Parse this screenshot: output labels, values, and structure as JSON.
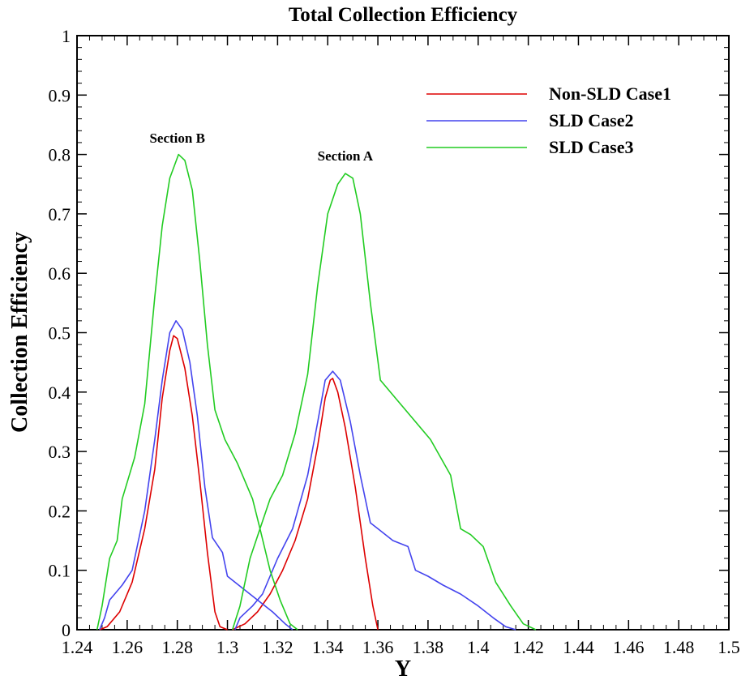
{
  "chart_data": {
    "type": "line",
    "title": "Total Collection Efficiency",
    "xlabel": "Y",
    "ylabel": "Collection Efficiency",
    "xlim": [
      1.24,
      1.5
    ],
    "ylim": [
      0,
      1
    ],
    "xticks": [
      "1.24",
      "1.26",
      "1.28",
      "1.3",
      "1.32",
      "1.34",
      "1.36",
      "1.38",
      "1.4",
      "1.42",
      "1.44",
      "1.46",
      "1.48",
      "1.5"
    ],
    "yticks": [
      "0",
      "0.1",
      "0.2",
      "0.3",
      "0.4",
      "0.5",
      "0.6",
      "0.7",
      "0.8",
      "0.9",
      "1"
    ],
    "legend_position": "top-right",
    "annotations": [
      {
        "text": "Section B",
        "x": 1.28,
        "y": 0.82
      },
      {
        "text": "Section A",
        "x": 1.347,
        "y": 0.79
      }
    ],
    "series": [
      {
        "name": "Non-SLD Case1",
        "color": "#dd0000",
        "segments": [
          [
            [
              1.249,
              0
            ],
            [
              1.252,
              0.005
            ],
            [
              1.257,
              0.03
            ],
            [
              1.262,
              0.08
            ],
            [
              1.267,
              0.17
            ],
            [
              1.271,
              0.27
            ],
            [
              1.274,
              0.39
            ],
            [
              1.277,
              0.47
            ],
            [
              1.2785,
              0.495
            ],
            [
              1.28,
              0.49
            ],
            [
              1.283,
              0.44
            ],
            [
              1.286,
              0.36
            ],
            [
              1.289,
              0.25
            ],
            [
              1.292,
              0.13
            ],
            [
              1.295,
              0.03
            ],
            [
              1.297,
              0.005
            ],
            [
              1.3,
              0
            ]
          ],
          [
            [
              1.302,
              0
            ],
            [
              1.307,
              0.01
            ],
            [
              1.312,
              0.03
            ],
            [
              1.317,
              0.06
            ],
            [
              1.322,
              0.1
            ],
            [
              1.327,
              0.15
            ],
            [
              1.332,
              0.22
            ],
            [
              1.336,
              0.31
            ],
            [
              1.339,
              0.39
            ],
            [
              1.341,
              0.42
            ],
            [
              1.342,
              0.423
            ],
            [
              1.344,
              0.4
            ],
            [
              1.347,
              0.34
            ],
            [
              1.351,
              0.24
            ],
            [
              1.355,
              0.12
            ],
            [
              1.358,
              0.04
            ],
            [
              1.36,
              0
            ]
          ]
        ]
      },
      {
        "name": "SLD Case2",
        "color": "#4444ee",
        "segments": [
          [
            [
              1.249,
              0
            ],
            [
              1.251,
              0.02
            ],
            [
              1.253,
              0.05
            ],
            [
              1.258,
              0.075
            ],
            [
              1.262,
              0.1
            ],
            [
              1.267,
              0.2
            ],
            [
              1.271,
              0.32
            ],
            [
              1.274,
              0.42
            ],
            [
              1.277,
              0.5
            ],
            [
              1.2795,
              0.52
            ],
            [
              1.282,
              0.505
            ],
            [
              1.285,
              0.45
            ],
            [
              1.288,
              0.36
            ],
            [
              1.291,
              0.24
            ],
            [
              1.294,
              0.155
            ],
            [
              1.298,
              0.13
            ],
            [
              1.3,
              0.09
            ],
            [
              1.306,
              0.07
            ],
            [
              1.312,
              0.05
            ],
            [
              1.318,
              0.03
            ],
            [
              1.323,
              0.01
            ],
            [
              1.326,
              0
            ]
          ],
          [
            [
              1.303,
              0
            ],
            [
              1.305,
              0.02
            ],
            [
              1.31,
              0.04
            ],
            [
              1.314,
              0.06
            ],
            [
              1.32,
              0.12
            ],
            [
              1.326,
              0.17
            ],
            [
              1.332,
              0.26
            ],
            [
              1.336,
              0.35
            ],
            [
              1.339,
              0.42
            ],
            [
              1.342,
              0.435
            ],
            [
              1.345,
              0.42
            ],
            [
              1.349,
              0.35
            ],
            [
              1.353,
              0.26
            ],
            [
              1.357,
              0.18
            ],
            [
              1.36,
              0.17
            ],
            [
              1.366,
              0.15
            ],
            [
              1.372,
              0.14
            ],
            [
              1.375,
              0.1
            ],
            [
              1.38,
              0.09
            ],
            [
              1.386,
              0.075
            ],
            [
              1.393,
              0.06
            ],
            [
              1.4,
              0.04
            ],
            [
              1.406,
              0.02
            ],
            [
              1.411,
              0.005
            ],
            [
              1.415,
              0
            ]
          ]
        ]
      },
      {
        "name": "SLD Case3",
        "color": "#22cc22",
        "segments": [
          [
            [
              1.248,
              0
            ],
            [
              1.25,
              0.04
            ],
            [
              1.253,
              0.12
            ],
            [
              1.256,
              0.15
            ],
            [
              1.258,
              0.22
            ],
            [
              1.263,
              0.29
            ],
            [
              1.267,
              0.38
            ],
            [
              1.271,
              0.56
            ],
            [
              1.274,
              0.68
            ],
            [
              1.277,
              0.76
            ],
            [
              1.2805,
              0.8
            ],
            [
              1.283,
              0.79
            ],
            [
              1.286,
              0.74
            ],
            [
              1.289,
              0.62
            ],
            [
              1.292,
              0.48
            ],
            [
              1.295,
              0.37
            ],
            [
              1.299,
              0.32
            ],
            [
              1.304,
              0.28
            ],
            [
              1.31,
              0.22
            ],
            [
              1.313,
              0.17
            ],
            [
              1.317,
              0.1
            ],
            [
              1.321,
              0.05
            ],
            [
              1.325,
              0.01
            ],
            [
              1.328,
              0
            ]
          ],
          [
            [
              1.302,
              0
            ],
            [
              1.305,
              0.04
            ],
            [
              1.309,
              0.12
            ],
            [
              1.313,
              0.17
            ],
            [
              1.317,
              0.22
            ],
            [
              1.322,
              0.26
            ],
            [
              1.327,
              0.33
            ],
            [
              1.332,
              0.43
            ],
            [
              1.336,
              0.58
            ],
            [
              1.34,
              0.7
            ],
            [
              1.344,
              0.75
            ],
            [
              1.347,
              0.768
            ],
            [
              1.35,
              0.76
            ],
            [
              1.353,
              0.7
            ],
            [
              1.357,
              0.55
            ],
            [
              1.361,
              0.42
            ],
            [
              1.367,
              0.39
            ],
            [
              1.373,
              0.36
            ],
            [
              1.381,
              0.32
            ],
            [
              1.389,
              0.26
            ],
            [
              1.393,
              0.17
            ],
            [
              1.397,
              0.16
            ],
            [
              1.402,
              0.14
            ],
            [
              1.407,
              0.08
            ],
            [
              1.413,
              0.04
            ],
            [
              1.418,
              0.01
            ],
            [
              1.423,
              0
            ]
          ]
        ]
      }
    ]
  }
}
